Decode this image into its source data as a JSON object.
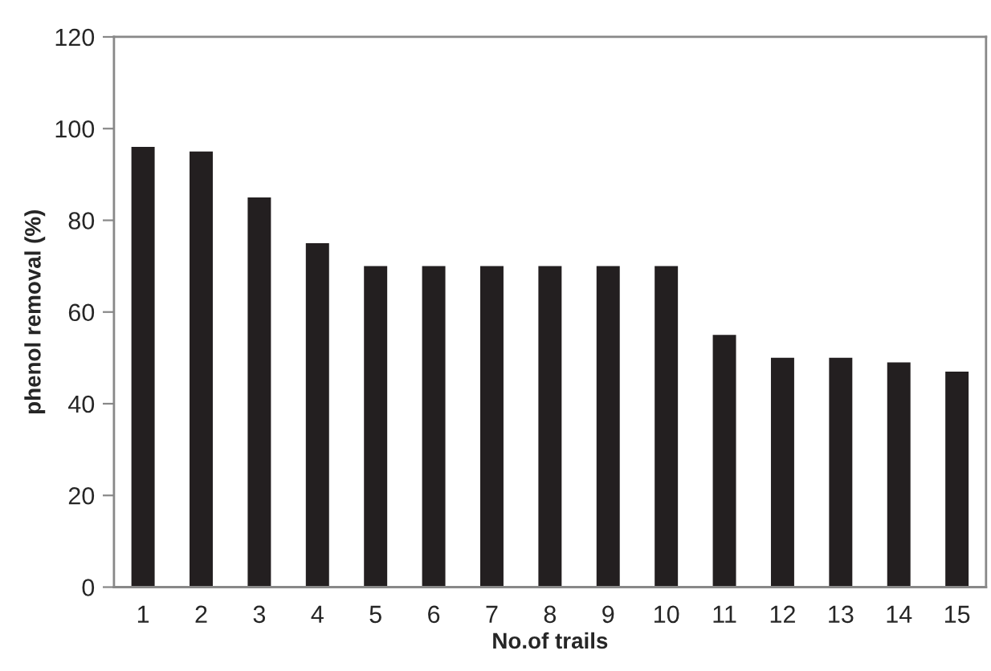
{
  "chart_data": {
    "type": "bar",
    "xlabel": "No.of trails",
    "ylabel": "phenol removal (%)",
    "categories": [
      "1",
      "2",
      "3",
      "4",
      "5",
      "6",
      "7",
      "8",
      "9",
      "10",
      "11",
      "12",
      "13",
      "14",
      "15"
    ],
    "values": [
      96,
      95,
      85,
      75,
      70,
      70,
      70,
      70,
      70,
      70,
      55,
      50,
      50,
      49,
      47
    ],
    "color": "#231f20",
    "ylim": [
      0,
      120
    ],
    "yticks": [
      0,
      20,
      40,
      60,
      80,
      100,
      120
    ],
    "grid": false
  }
}
